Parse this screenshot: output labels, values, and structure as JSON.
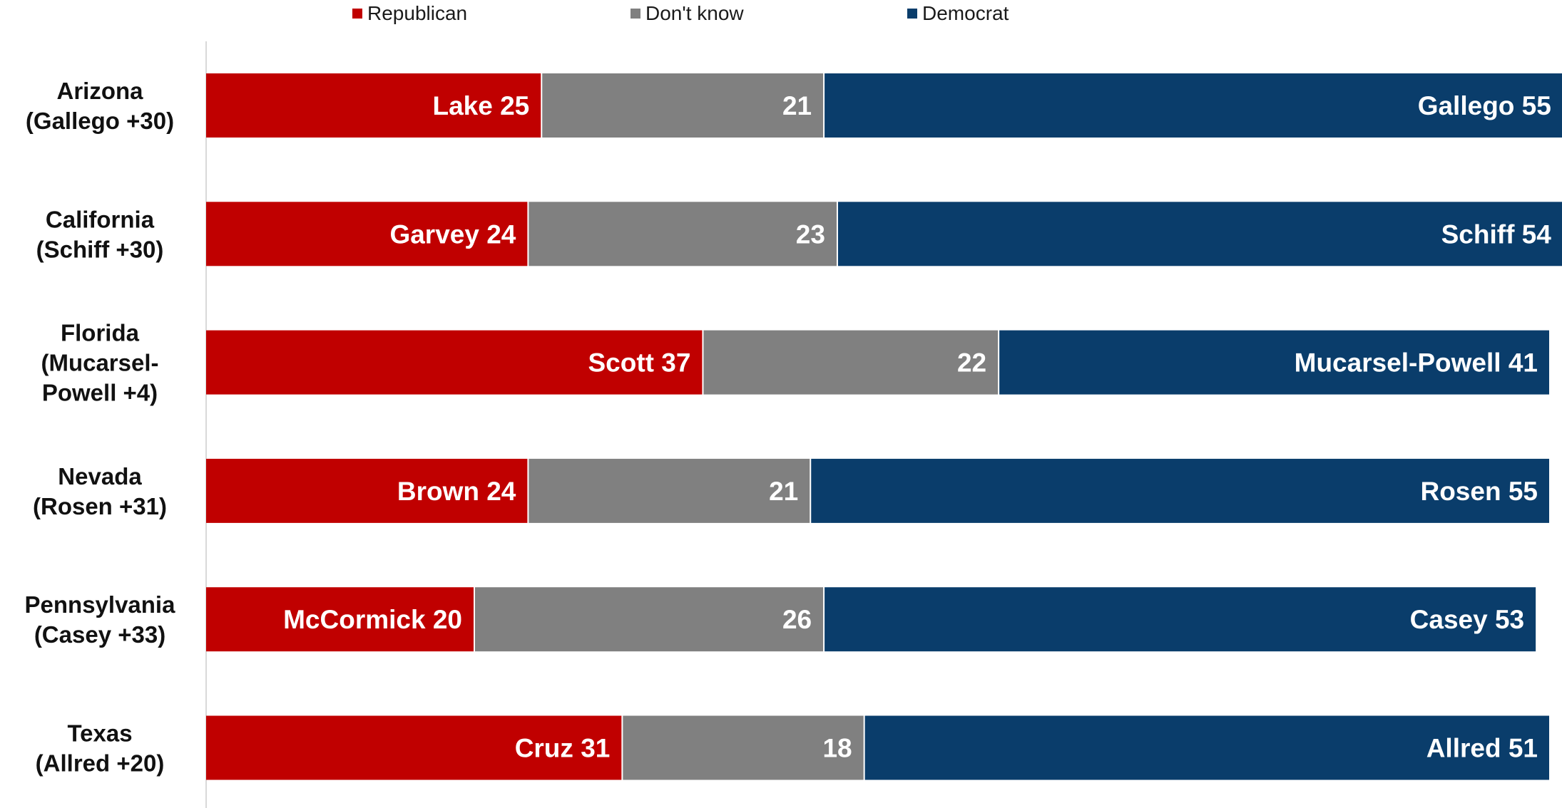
{
  "chart_data": {
    "type": "bar",
    "orientation": "horizontal",
    "stacked": true,
    "legend_position": "top",
    "grid": false,
    "xlim": [
      0,
      100
    ],
    "categories": [
      [
        "Arizona",
        "(Gallego +30)"
      ],
      [
        "California",
        "(Schiff +30)"
      ],
      [
        "Florida",
        "(Mucarsel-",
        "Powell +4)"
      ],
      [
        "Nevada",
        "(Rosen +31)"
      ],
      [
        "Pennsylvania",
        "(Casey +33)"
      ],
      [
        "Texas",
        "(Allred +20)"
      ]
    ],
    "series": [
      {
        "name": "Republican",
        "color": "#c00000",
        "values": [
          25,
          24,
          37,
          24,
          20,
          31
        ],
        "labels": [
          "Lake 25",
          "Garvey 24",
          "Scott 37",
          "Brown 24",
          "McCormick 20",
          "Cruz 31"
        ]
      },
      {
        "name": "Don't know",
        "color": "#808080",
        "values": [
          21,
          23,
          22,
          21,
          26,
          18
        ],
        "labels": [
          "21",
          "23",
          "22",
          "21",
          "26",
          "18"
        ]
      },
      {
        "name": "Democrat",
        "color": "#0a3d6b",
        "values": [
          55,
          54,
          41,
          55,
          53,
          51
        ],
        "labels": [
          "Gallego 55",
          "Schiff 54",
          "Mucarsel-Powell 41",
          "Rosen 55",
          "Casey 53",
          "Allred 51"
        ]
      }
    ]
  }
}
